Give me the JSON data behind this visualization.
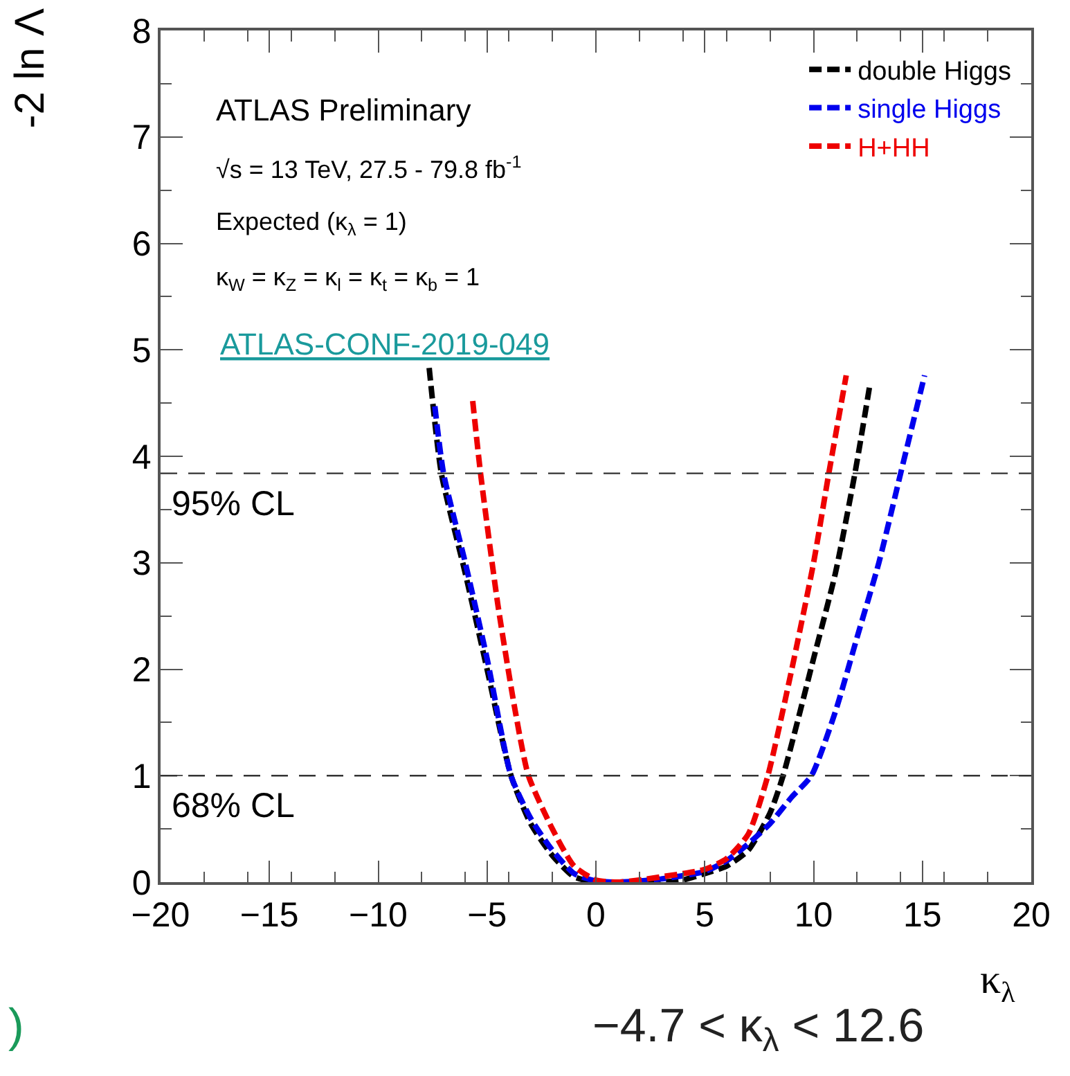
{
  "chart_data": {
    "type": "line",
    "xlabel": "κ$_{λ}$",
    "ylabel": "-2 ln Λ",
    "xlim": [
      -20,
      20
    ],
    "xticks": [
      {
        "value": -20,
        "label": "−20"
      },
      {
        "value": -15,
        "label": "−15"
      },
      {
        "value": -10,
        "label": "−10"
      },
      {
        "value": -5,
        "label": "−5"
      },
      0,
      5,
      10,
      15,
      20
    ],
    "ylim": [
      0,
      8
    ],
    "yticks": [
      0,
      1,
      2,
      3,
      4,
      5,
      6,
      7,
      8
    ],
    "grid": false,
    "legend": "top right",
    "line_style": "dashed",
    "marker": "none",
    "series": [
      {
        "name": "double Higgs",
        "color": "#000000",
        "x": [
          -7.66,
          -7.1,
          -6,
          -5,
          -3.9,
          -3,
          -2,
          -1,
          0,
          1,
          2,
          3,
          4,
          5,
          6,
          7,
          8,
          8.6,
          10,
          11,
          11.9,
          12.6
        ],
        "values": [
          4.83,
          3.84,
          2.9,
          2.0,
          1.0,
          0.55,
          0.25,
          0.05,
          0,
          0,
          0,
          0,
          0.02,
          0.08,
          0.15,
          0.3,
          0.65,
          1.0,
          2.1,
          2.9,
          3.84,
          4.69
        ]
      },
      {
        "name": "single Higgs",
        "color": "#0000ee",
        "x": [
          -7.4,
          -7.0,
          -6,
          -5,
          -3.9,
          -3,
          -2,
          -1,
          0,
          1,
          2,
          3,
          4,
          5,
          6,
          7,
          8,
          9,
          9.9,
          11,
          12,
          13,
          14,
          15.1
        ],
        "values": [
          4.47,
          3.84,
          3.0,
          2.1,
          1.0,
          0.6,
          0.3,
          0.08,
          0.01,
          0,
          0.01,
          0.03,
          0.06,
          0.1,
          0.2,
          0.36,
          0.55,
          0.8,
          1.0,
          1.6,
          2.3,
          3.0,
          3.84,
          4.76
        ]
      },
      {
        "name": "H+HH",
        "color": "#ee0000",
        "x": [
          -5.66,
          -5.3,
          -4.5,
          -3.7,
          -3.1,
          -2,
          -1,
          0,
          1,
          2,
          3,
          4,
          5,
          6,
          7,
          7.9,
          9,
          10,
          10.7,
          11.5
        ],
        "values": [
          4.52,
          3.84,
          2.6,
          1.6,
          1.0,
          0.5,
          0.15,
          0.02,
          0,
          0.02,
          0.05,
          0.08,
          0.12,
          0.22,
          0.45,
          1.0,
          2.0,
          3.0,
          3.84,
          4.76
        ]
      }
    ],
    "ref_lines": [
      {
        "axis": "y",
        "value": 3.84,
        "label": "95% CL",
        "line_style": "dashed"
      },
      {
        "axis": "y",
        "value": 1,
        "label": "68% CL",
        "line_style": "dashed"
      }
    ],
    "annotations": [
      "ATLAS Preliminary",
      "√s = 13 TeV, 27.5 - 79.8 fb$^{-1}$",
      "Expected (κ$_{λ}$ = 1)",
      "κ$_{W}$ = κ$_{Z}$ = κ$_{l}$ = κ$_{t}$ = κ$_{b}$ = 1",
      "ATLAS-CONF-2019-049",
      "−4.7 < κ$_{λ}$ < 12.6",
      ")"
    ]
  }
}
